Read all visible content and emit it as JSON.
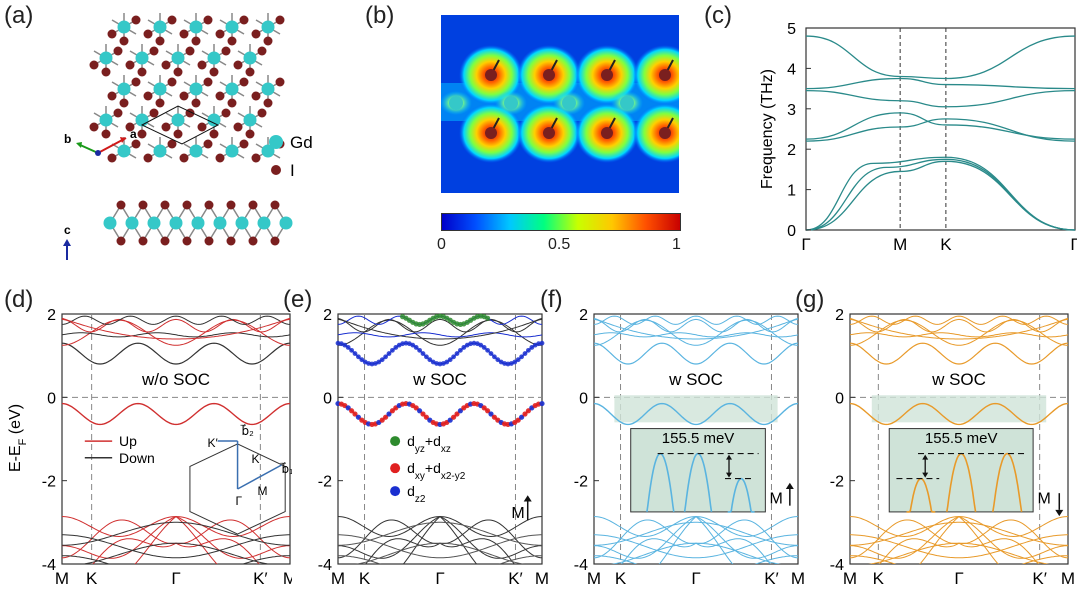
{
  "figure": {
    "panel_labels": [
      "(a)",
      "(b)",
      "(c)",
      "(d)",
      "(e)",
      "(f)",
      "(g)"
    ]
  },
  "panel_a": {
    "legend": [
      {
        "label": "Gd",
        "color": "#35c8c8"
      },
      {
        "label": "I",
        "color": "#7a1f1f"
      }
    ],
    "axes_top": {
      "a": "a",
      "b": "b"
    },
    "axes_bottom": {
      "c": "c",
      "b": "b"
    }
  },
  "panel_b": {
    "colorbar_ticks": [
      "0",
      "0.5",
      "1"
    ],
    "colormap": [
      "#0000c8",
      "#0050ff",
      "#00c8ff",
      "#00ff80",
      "#c8ff00",
      "#ffc800",
      "#ff5000",
      "#c80000"
    ]
  },
  "chart_data": [
    {
      "panel": "c",
      "type": "line",
      "ylabel": "Frequency (THz)",
      "ylim": [
        0,
        5
      ],
      "yticks": [
        "0",
        "1",
        "2",
        "3",
        "4",
        "5"
      ],
      "xticks": [
        "Γ",
        "M",
        "K",
        "Γ"
      ],
      "color": "#2a8a8a",
      "series": [
        {
          "values": [
            [
              0,
              0
            ],
            [
              0.35,
              1.45
            ],
            [
              0.52,
              1.7
            ],
            [
              1,
              0
            ]
          ]
        },
        {
          "values": [
            [
              0,
              0
            ],
            [
              0.3,
              1.55
            ],
            [
              0.52,
              1.75
            ],
            [
              1,
              0
            ]
          ]
        },
        {
          "values": [
            [
              0,
              0
            ],
            [
              0.25,
              1.65
            ],
            [
              0.52,
              1.8
            ],
            [
              1,
              0
            ]
          ]
        },
        {
          "values": [
            [
              0,
              2.2
            ],
            [
              0.35,
              2.55
            ],
            [
              0.52,
              2.75
            ],
            [
              1,
              2.2
            ]
          ]
        },
        {
          "values": [
            [
              0,
              2.25
            ],
            [
              0.35,
              2.9
            ],
            [
              0.52,
              2.6
            ],
            [
              1,
              2.25
            ]
          ]
        },
        {
          "values": [
            [
              0,
              3.45
            ],
            [
              0.35,
              3.2
            ],
            [
              0.52,
              3.05
            ],
            [
              1,
              3.45
            ]
          ]
        },
        {
          "values": [
            [
              0,
              3.5
            ],
            [
              0.35,
              3.75
            ],
            [
              0.52,
              3.6
            ],
            [
              1,
              3.5
            ]
          ]
        },
        {
          "values": [
            [
              0,
              4.8
            ],
            [
              0.35,
              3.8
            ],
            [
              0.52,
              3.75
            ],
            [
              1,
              4.8
            ]
          ]
        }
      ]
    },
    {
      "panel": "d",
      "type": "line",
      "ylabel": "E-E",
      "ylabel_sub": "F",
      "ylabel_tail": " (eV)",
      "ylim": [
        -4,
        2
      ],
      "yticks": [
        "2",
        "0",
        "-2",
        "-4"
      ],
      "xticks": [
        "M",
        "K",
        "Γ",
        "K′",
        "M"
      ],
      "annotation": "w/o SOC",
      "legend": [
        {
          "label": "Up",
          "color": "#d03030"
        },
        {
          "label": "Down",
          "color": "#333333"
        }
      ],
      "bz_labels": {
        "K1": "K′",
        "K2": "K",
        "M": "M",
        "G": "Γ",
        "b1": "b⃗₁",
        "b2": "b⃗₂"
      }
    },
    {
      "panel": "e",
      "type": "line",
      "ylim": [
        -4,
        2
      ],
      "yticks": [
        "2",
        "0",
        "-2",
        "-4"
      ],
      "xticks": [
        "M",
        "K",
        "Γ",
        "K′",
        "M"
      ],
      "annotation": "w SOC",
      "legend": [
        {
          "label": "dyz+dxz",
          "color": "#2e8b2e"
        },
        {
          "label": "dxy+dx2-y2",
          "color": "#e02020"
        },
        {
          "label": "dz2",
          "color": "#1a2fd0"
        }
      ],
      "moment_label": "M"
    },
    {
      "panel": "f",
      "type": "line",
      "ylim": [
        -4,
        2
      ],
      "yticks": [
        "2",
        "0",
        "-2",
        "-4"
      ],
      "xticks": [
        "M",
        "K",
        "Γ",
        "K′",
        "M"
      ],
      "annotation": "w SOC",
      "inset_label": "155.5 meV",
      "moment_label": "M",
      "color": "#5ab4e0"
    },
    {
      "panel": "g",
      "type": "line",
      "ylim": [
        -4,
        2
      ],
      "yticks": [
        "2",
        "0",
        "-2",
        "-4"
      ],
      "xticks": [
        "M",
        "K",
        "Γ",
        "K′",
        "M"
      ],
      "annotation": "w SOC",
      "inset_label": "155.5 meV",
      "moment_label": "M",
      "color": "#e89a2a"
    }
  ]
}
